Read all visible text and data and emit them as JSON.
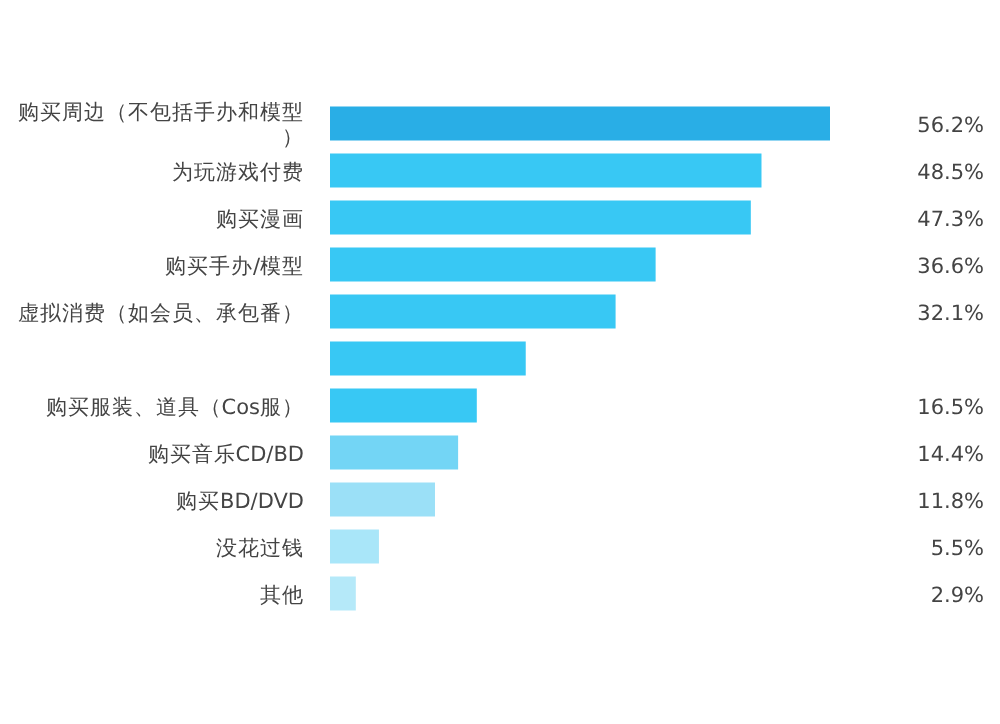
{
  "chart_data": {
    "type": "bar",
    "orientation": "horizontal",
    "categories": [
      "购买周边（不包括手办和模型）",
      "为玩游戏付费",
      "购买漫画",
      "购买手办/模型",
      "虚拟消费（如会员、承包番）",
      null,
      "购买服装、道具（Cos服）",
      "购买音乐CD/BD",
      "购买BD/DVD",
      "没花过钱",
      "其他"
    ],
    "values": [
      56.2,
      48.5,
      47.3,
      36.6,
      32.1,
      22,
      16.5,
      14.4,
      11.8,
      5.5,
      2.9
    ],
    "value_labels": [
      "56.2%",
      "48.5%",
      "47.3%",
      "36.6%",
      "32.1%",
      null,
      "16.5%",
      "14.4%",
      "11.8%",
      "5.5%",
      "2.9%"
    ],
    "colors": [
      "#29aee6",
      "#38c8f4",
      "#38c8f4",
      "#38c8f4",
      "#38c8f4",
      "#38c8f4",
      "#38c8f4",
      "#73d5f5",
      "#9be0f7",
      "#a9e6f9",
      "#b5e9f9"
    ],
    "xlim": [
      0,
      56.2
    ],
    "tick_labels": "y"
  }
}
